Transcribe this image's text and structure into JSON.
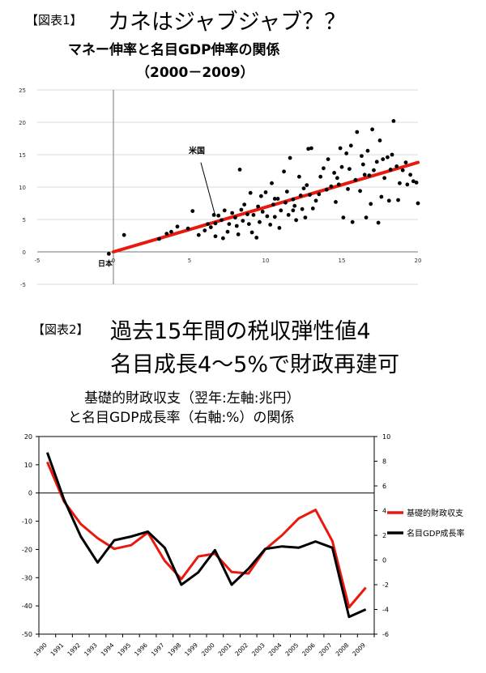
{
  "figure1": {
    "label": "【図表1】",
    "heading": "カネはジャブジャブ？？"
  },
  "figure2": {
    "label": "【図表2】",
    "heading_line1": "過去15年間の税収弾性値4",
    "heading_line2": "名目成長4～5%で財政再建可"
  },
  "chart_data": [
    {
      "type": "scatter",
      "title": "マネー伸率と名目GDP伸率の関係",
      "subtitle": "（2000－2009）",
      "xlabel": "",
      "ylabel": "",
      "xlim": [
        -5,
        20
      ],
      "ylim": [
        -5,
        25
      ],
      "x_ticks": [
        "-5",
        "0",
        "5",
        "10",
        "15",
        "20"
      ],
      "y_ticks": [
        "-5",
        "0",
        "5",
        "10",
        "15",
        "20",
        "25"
      ],
      "grid": "horizontal",
      "trendline": {
        "x": [
          0,
          20
        ],
        "y": [
          0,
          13.8
        ],
        "color": "#e8190f"
      },
      "annotations": [
        {
          "text": "米国",
          "x": 6.7,
          "y": 5.5
        },
        {
          "text": "日本",
          "x": 0,
          "y": -0.3
        }
      ],
      "points": [
        [
          -0.3,
          -0.3
        ],
        [
          0.7,
          2.6
        ],
        [
          4.2,
          3.9
        ],
        [
          3.8,
          3.1
        ],
        [
          3.5,
          2.8
        ],
        [
          3.0,
          2.0
        ],
        [
          4.9,
          3.6
        ],
        [
          5.2,
          6.3
        ],
        [
          5.6,
          2.6
        ],
        [
          6.0,
          3.3
        ],
        [
          6.2,
          4.3
        ],
        [
          6.4,
          3.8
        ],
        [
          6.6,
          5.7
        ],
        [
          6.7,
          4.4
        ],
        [
          6.7,
          2.4
        ],
        [
          6.9,
          5.6
        ],
        [
          7.1,
          4.9
        ],
        [
          7.2,
          2.1
        ],
        [
          7.3,
          6.4
        ],
        [
          7.5,
          3.1
        ],
        [
          7.6,
          4.3
        ],
        [
          7.8,
          6.0
        ],
        [
          8.0,
          5.3
        ],
        [
          8.1,
          4.0
        ],
        [
          8.2,
          2.7
        ],
        [
          8.3,
          12.7
        ],
        [
          8.4,
          6.5
        ],
        [
          8.6,
          7.3
        ],
        [
          8.8,
          5.8
        ],
        [
          8.9,
          4.3
        ],
        [
          9.0,
          9.1
        ],
        [
          9.1,
          3.0
        ],
        [
          9.2,
          5.7
        ],
        [
          9.4,
          2.2
        ],
        [
          9.5,
          7.0
        ],
        [
          9.6,
          4.6
        ],
        [
          9.7,
          8.6
        ],
        [
          9.8,
          6.2
        ],
        [
          10.0,
          9.2
        ],
        [
          10.1,
          5.5
        ],
        [
          10.3,
          4.2
        ],
        [
          10.4,
          10.6
        ],
        [
          10.5,
          7.3
        ],
        [
          10.6,
          5.4
        ],
        [
          10.8,
          8.2
        ],
        [
          10.9,
          3.7
        ],
        [
          11.0,
          6.4
        ],
        [
          11.2,
          12.4
        ],
        [
          11.3,
          7.6
        ],
        [
          11.4,
          9.3
        ],
        [
          11.5,
          5.7
        ],
        [
          11.6,
          14.5
        ],
        [
          11.8,
          8.1
        ],
        [
          11.9,
          7.1
        ],
        [
          12.0,
          4.9
        ],
        [
          12.2,
          11.6
        ],
        [
          12.3,
          8.7
        ],
        [
          12.4,
          6.6
        ],
        [
          12.5,
          9.8
        ],
        [
          12.6,
          5.3
        ],
        [
          12.7,
          10.3
        ],
        [
          12.8,
          15.9
        ],
        [
          12.9,
          8.8
        ],
        [
          13.0,
          16.0
        ],
        [
          13.1,
          6.7
        ],
        [
          13.3,
          7.9
        ],
        [
          13.5,
          8.9
        ],
        [
          13.6,
          11.6
        ],
        [
          13.8,
          12.9
        ],
        [
          14.0,
          9.6
        ],
        [
          14.1,
          14.3
        ],
        [
          14.3,
          10.1
        ],
        [
          14.5,
          12.2
        ],
        [
          14.6,
          7.7
        ],
        [
          14.7,
          11.4
        ],
        [
          14.9,
          16.0
        ],
        [
          15.0,
          13.1
        ],
        [
          15.1,
          5.3
        ],
        [
          15.3,
          15.2
        ],
        [
          15.4,
          9.7
        ],
        [
          15.5,
          12.8
        ],
        [
          15.6,
          16.4
        ],
        [
          15.7,
          4.6
        ],
        [
          15.9,
          11.1
        ],
        [
          16.0,
          18.5
        ],
        [
          16.2,
          9.4
        ],
        [
          16.3,
          14.8
        ],
        [
          16.4,
          13.5
        ],
        [
          16.6,
          5.3
        ],
        [
          16.7,
          15.6
        ],
        [
          16.8,
          11.8
        ],
        [
          16.9,
          7.4
        ],
        [
          17.1,
          12.6
        ],
        [
          17.3,
          13.9
        ],
        [
          17.4,
          4.5
        ],
        [
          17.5,
          17.2
        ],
        [
          17.6,
          8.5
        ],
        [
          17.7,
          14.3
        ],
        [
          17.8,
          11.4
        ],
        [
          18.0,
          14.6
        ],
        [
          18.1,
          7.9
        ],
        [
          18.2,
          12.7
        ],
        [
          18.3,
          15.0
        ],
        [
          18.4,
          20.2
        ],
        [
          18.6,
          13.2
        ],
        [
          18.7,
          8.0
        ],
        [
          18.8,
          10.6
        ],
        [
          19.0,
          12.6
        ],
        [
          19.2,
          13.8
        ],
        [
          19.3,
          10.4
        ],
        [
          19.5,
          11.9
        ],
        [
          19.7,
          10.9
        ],
        [
          19.9,
          10.7
        ],
        [
          20.0,
          7.5
        ],
        [
          17.0,
          18.9
        ],
        [
          16.5,
          11.9
        ],
        [
          14.8,
          10.4
        ],
        [
          10.6,
          8.2
        ],
        [
          11.8,
          6.4
        ],
        [
          8.5,
          4.8
        ]
      ]
    },
    {
      "type": "line",
      "title": "基礎的財政収支（翌年:左軸:兆円）",
      "subtitle": "と名目GDP成長率（右軸:%）の関係",
      "categories": [
        "1990",
        "1991",
        "1992",
        "1993",
        "1994",
        "1995",
        "1996",
        "1997",
        "1998",
        "1999",
        "2000",
        "2001",
        "2002",
        "2003",
        "2004",
        "2005",
        "2006",
        "2007",
        "2008",
        "2009"
      ],
      "ylim_left": [
        -50,
        20
      ],
      "ylim_right": [
        -6,
        10
      ],
      "y_ticks_left": [
        "20",
        "10",
        "0",
        "-10",
        "-20",
        "-30",
        "-40",
        "-50"
      ],
      "y_ticks_right": [
        "10",
        "8",
        "6",
        "4",
        "2",
        "0",
        "-2",
        "-4",
        "-6"
      ],
      "series": [
        {
          "name": "基礎的財政収支",
          "axis": "left",
          "color": "#e8190f",
          "values": [
            11,
            -3,
            -11,
            -16,
            -19.8,
            -18.5,
            -14,
            -24,
            -30.5,
            -22.5,
            -21.5,
            -28,
            -28.5,
            -20,
            -15,
            -9,
            -6,
            -17,
            -40.5,
            -33.5
          ]
        },
        {
          "name": "名目GDP成長率",
          "axis": "right",
          "color": "#000000",
          "values": [
            8.7,
            4.9,
            1.9,
            -0.2,
            1.6,
            1.9,
            2.3,
            1.0,
            -2.0,
            -1.0,
            0.8,
            -2.0,
            -0.7,
            0.9,
            1.1,
            1.0,
            1.5,
            1.0,
            -4.6,
            -4.0
          ]
        }
      ],
      "legend_position": "right"
    }
  ]
}
